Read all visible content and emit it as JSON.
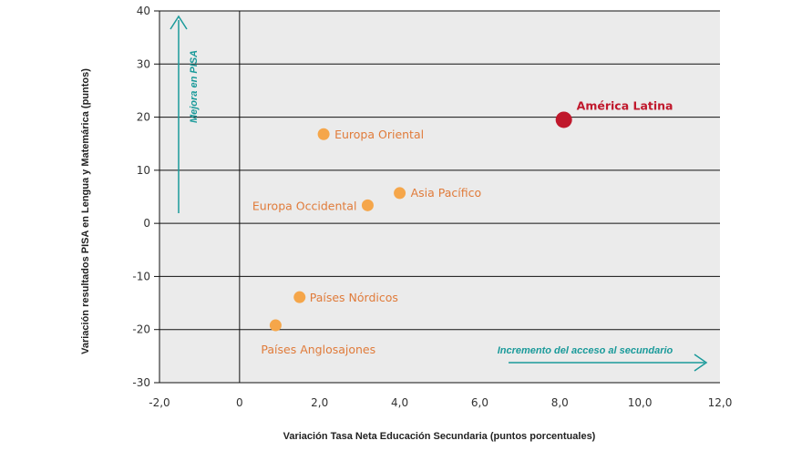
{
  "chart_data": {
    "type": "scatter",
    "xlabel": "Variación Tasa Neta Educación Secundaria (puntos porcentuales)",
    "ylabel": "Variación resultados PISA en Lengua y Matemárica (puntos)",
    "xlim": [
      -2.0,
      12.0
    ],
    "ylim": [
      -30,
      40
    ],
    "x_ticks": [
      -2.0,
      0,
      2.0,
      4.0,
      6.0,
      8.0,
      10.0,
      12.0
    ],
    "x_tick_labels": [
      "-2,0",
      "0",
      "2,0",
      "4,0",
      "6,0",
      "8,0",
      "10,0",
      "12,0"
    ],
    "y_ticks": [
      40,
      30,
      20,
      10,
      0,
      -10,
      -20,
      -30
    ],
    "y_tick_labels": [
      "40",
      "30",
      "20",
      "10",
      "0",
      "-10",
      "-20",
      "-30"
    ],
    "grid": "horizontal",
    "points": [
      {
        "label": "América Latina",
        "x": 8.1,
        "y": 19.5,
        "highlight": true
      },
      {
        "label": "Europa Oriental",
        "x": 2.1,
        "y": 16.8
      },
      {
        "label": "Asia Pacífico",
        "x": 4.0,
        "y": 5.7
      },
      {
        "label": "Europa Occidental",
        "x": 3.2,
        "y": 3.4
      },
      {
        "label": "Países Nórdicos",
        "x": 1.5,
        "y": -13.9
      },
      {
        "label": "Países Anglosajones",
        "x": 0.9,
        "y": -19.2
      }
    ],
    "annotations": {
      "y_arrow": "Mejora en PISA",
      "x_arrow": "Incremento del acceso al secundario"
    },
    "colors": {
      "point": "#f5a64a",
      "point_label": "#e07b3a",
      "highlight": "#c0182c",
      "annotation": "#1a9a9a",
      "grid": "#111111",
      "plot_bg": "#ebebeb"
    }
  }
}
